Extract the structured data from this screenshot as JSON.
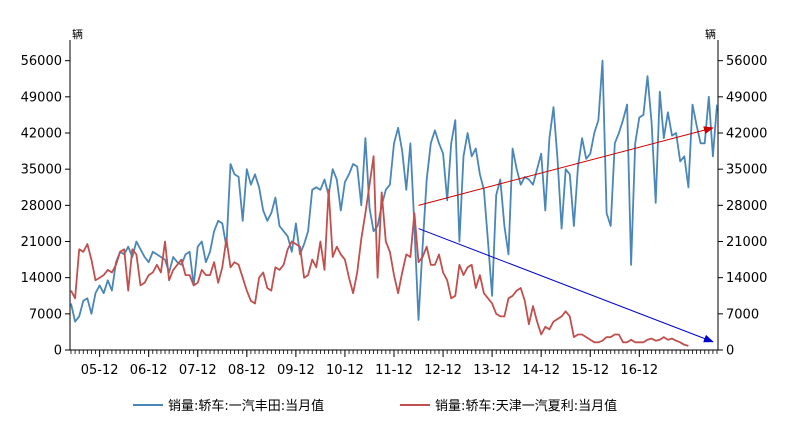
{
  "chart_data": {
    "type": "line",
    "title": "",
    "unit_left": "辆",
    "unit_right": "辆",
    "y_ticks": [
      0,
      7000,
      14000,
      21000,
      28000,
      35000,
      42000,
      49000,
      56000
    ],
    "ylim": [
      0,
      60000
    ],
    "x_ticks": [
      "05-12",
      "06-12",
      "07-12",
      "08-12",
      "09-12",
      "10-12",
      "11-12",
      "12-12",
      "13-12",
      "14-12",
      "15-12",
      "16-12"
    ],
    "legend_position": "bottom",
    "grid": false,
    "series": [
      {
        "name": "销量:轿车:一汽丰田:当月值",
        "color": "#4a86b8",
        "values": [
          9000,
          5500,
          6500,
          9500,
          10000,
          7000,
          11000,
          12500,
          11000,
          13500,
          11500,
          17000,
          19000,
          18500,
          20000,
          18000,
          21000,
          19500,
          18000,
          17000,
          19000,
          18500,
          18000,
          17500,
          15000,
          18000,
          17000,
          16500,
          18500,
          19000,
          12500,
          20000,
          21000,
          17000,
          19000,
          23000,
          25000,
          24500,
          20000,
          36000,
          34000,
          33500,
          25000,
          35000,
          32000,
          34000,
          31500,
          27000,
          25000,
          26500,
          29500,
          24000,
          23000,
          22000,
          19000,
          24500,
          18500,
          20500,
          23000,
          31000,
          31500,
          31000,
          33000,
          30000,
          35000,
          33000,
          27000,
          32500,
          34000,
          36000,
          35500,
          28000,
          41000,
          27500,
          23000,
          24000,
          28000,
          31000,
          32000,
          40000,
          43000,
          38500,
          31000,
          40000,
          24000,
          5800,
          20000,
          33000,
          40000,
          42500,
          40000,
          38000,
          29000,
          40000,
          44500,
          21000,
          37500,
          42000,
          37500,
          39000,
          34000,
          31000,
          21000,
          10500,
          30000,
          33000,
          24000,
          18500,
          39000,
          35000,
          32000,
          33500,
          33000,
          32000,
          35000,
          38000,
          27000,
          41000,
          47000,
          37000,
          23500,
          35000,
          34000,
          24000,
          35500,
          41000,
          37000,
          38000,
          42000,
          44500,
          56000,
          26500,
          24000,
          40000,
          42000,
          44500,
          47500,
          16500,
          40000,
          45000,
          45500,
          53000,
          44000,
          28500,
          50000,
          41000,
          46000,
          41500,
          42000,
          36500,
          37500,
          31500,
          47500,
          43500,
          40000,
          40000,
          49000,
          37500,
          47500
        ]
      },
      {
        "name": "销量:轿车:天津一汽夏利:当月值",
        "color": "#c0504d",
        "values": [
          11500,
          10000,
          19500,
          19000,
          20500,
          17500,
          13500,
          14000,
          14500,
          15500,
          15000,
          16500,
          19000,
          19500,
          11500,
          19500,
          18500,
          12500,
          13000,
          14500,
          15000,
          16500,
          15000,
          21000,
          13500,
          15500,
          16500,
          17500,
          14500,
          14500,
          12500,
          13000,
          15500,
          14500,
          14500,
          17000,
          13000,
          16000,
          21500,
          16000,
          17000,
          16500,
          14000,
          11500,
          9500,
          9000,
          14000,
          15000,
          12000,
          11500,
          16000,
          15500,
          16500,
          19500,
          21000,
          20500,
          20000,
          14000,
          14500,
          17500,
          16000,
          21000,
          15500,
          31000,
          18000,
          20000,
          18500,
          17500,
          14000,
          11000,
          15000,
          21500,
          26500,
          32000,
          37500,
          14000,
          30500,
          21000,
          19000,
          14500,
          11000,
          15000,
          18500,
          18000,
          26500,
          17000,
          18000,
          20000,
          16500,
          16500,
          18500,
          15000,
          13500,
          10000,
          10500,
          16500,
          14500,
          16000,
          16500,
          12000,
          14500,
          11000,
          10000,
          9000,
          7000,
          6500,
          6500,
          10000,
          10500,
          11500,
          12000,
          9500,
          5000,
          8500,
          5500,
          3000,
          4500,
          4000,
          5500,
          6000,
          6500,
          7500,
          6500,
          2500,
          3000,
          3000,
          2500,
          2000,
          1500,
          1500,
          1800,
          2500,
          2500,
          3000,
          3000,
          1500,
          1500,
          2000,
          1500,
          1500,
          1500,
          2000,
          2200,
          1800,
          2000,
          2500,
          2000,
          2200,
          1800,
          1500,
          1000,
          800
        ]
      }
    ],
    "annotations": [
      {
        "type": "trend-arrow",
        "series": 0,
        "color": "#cc0000",
        "from": {
          "index": 85,
          "value": 28000
        },
        "to": {
          "index": 157,
          "value": 43000
        }
      },
      {
        "type": "trend-arrow",
        "series": 1,
        "color": "#0000cc",
        "from": {
          "index": 85,
          "value": 23500
        },
        "to": {
          "index": 157,
          "value": 1600
        }
      }
    ]
  }
}
